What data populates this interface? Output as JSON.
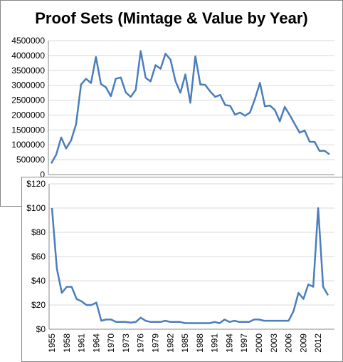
{
  "chart_data": [
    {
      "type": "line",
      "title": "Proof Sets (Mintage & Value by Year)",
      "color": "#4a7ebb",
      "grid": true,
      "ylim": [
        0,
        4500000
      ],
      "yticks": [
        0,
        500000,
        1000000,
        1500000,
        2000000,
        2500000,
        3000000,
        3500000,
        4000000,
        4500000
      ],
      "values": [
        378200,
        669384,
        1247952,
        875652,
        1149291,
        1691602,
        3028244,
        3218019,
        3075645,
        3950762,
        3041506,
        2934631,
        2632810,
        3220733,
        3260996,
        2760339,
        2612568,
        2845450,
        4149730,
        3251152,
        3127781,
        3677175,
        3554806,
        4063083,
        3857479,
        3138765,
        2748430,
        3362821,
        2411180,
        3972233,
        3031287,
        3009107,
        2793433,
        2610833,
        2675618,
        2337819,
        2308701,
        2010384,
        2085191,
        1975000,
        2086507,
        2543401,
        3082572,
        2294909,
        2319766,
        2172684,
        1789488,
        2275000,
        2000428,
        1702116,
        1405674,
        1482502,
        1103815,
        1098835,
        794002,
        802460,
        680977
      ]
    },
    {
      "type": "line",
      "color": "#4a7ebb",
      "grid": true,
      "ylim": [
        0,
        120
      ],
      "yticks": [
        {
          "value": 0,
          "label": "$0"
        },
        {
          "value": 20,
          "label": "$20"
        },
        {
          "value": 40,
          "label": "$40"
        },
        {
          "value": 60,
          "label": "$60"
        },
        {
          "value": 80,
          "label": "$80"
        },
        {
          "value": 100,
          "label": "$100"
        },
        {
          "value": 120,
          "label": "$120"
        }
      ],
      "categories": [
        "1955",
        null,
        null,
        "1958",
        null,
        null,
        "1961",
        null,
        null,
        "1964",
        null,
        null,
        "1970",
        null,
        null,
        "1973",
        null,
        null,
        "1976",
        null,
        null,
        "1979",
        null,
        null,
        "1982",
        null,
        null,
        "1985",
        null,
        null,
        "1988",
        null,
        null,
        "1991",
        null,
        null,
        "1994",
        null,
        null,
        "1997",
        null,
        null,
        "2000",
        null,
        null,
        "2003",
        null,
        null,
        "2006",
        null,
        null,
        "2009",
        null,
        null,
        "2012",
        null,
        null
      ],
      "values": [
        100,
        50,
        30,
        35,
        35,
        25,
        23,
        20,
        20,
        22,
        7,
        8,
        8,
        6,
        6,
        6,
        5.5,
        6,
        9.5,
        7,
        6,
        6,
        6,
        7,
        6,
        6,
        6,
        5,
        5,
        5,
        5,
        5,
        5,
        6,
        5,
        8,
        6,
        7,
        6,
        6,
        6,
        8,
        8,
        7,
        7,
        7,
        7,
        7,
        7,
        15,
        30,
        25,
        37,
        35,
        100,
        35,
        28
      ]
    }
  ]
}
